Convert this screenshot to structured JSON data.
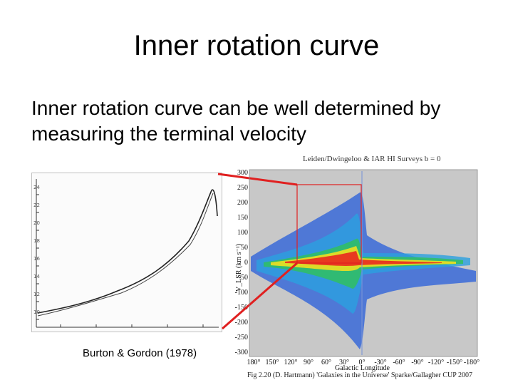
{
  "slide": {
    "title": "Inner rotation curve",
    "body": "Inner rotation curve can be well determined by measuring the terminal velocity"
  },
  "left_figure": {
    "caption": "Burton & Gordon (1978)"
  },
  "right_figure": {
    "title": "Leiden/Dwingeloo & IAR HI Surveys  b = 0",
    "ylabel": "V_LSR (km s⁻¹)",
    "xlabel": "Galactic Longitude",
    "caption": "Fig 2.20 (D. Hartmann) 'Galaxies in the Universe' Sparke/Gallagher CUP 2007",
    "yticks": [
      "300",
      "250",
      "200",
      "150",
      "100",
      "50",
      "0",
      "-50",
      "-100",
      "-150",
      "-200",
      "-250",
      "-300"
    ],
    "xticks": [
      "180°",
      "150°",
      "120°",
      "90°",
      "60°",
      "30°",
      "0°",
      "-30°",
      "-60°",
      "-90°",
      "-120°",
      "-150°",
      "-180°"
    ]
  },
  "colors": {
    "highlight": "#e02020",
    "plot_bg": "#c8c8c8"
  }
}
